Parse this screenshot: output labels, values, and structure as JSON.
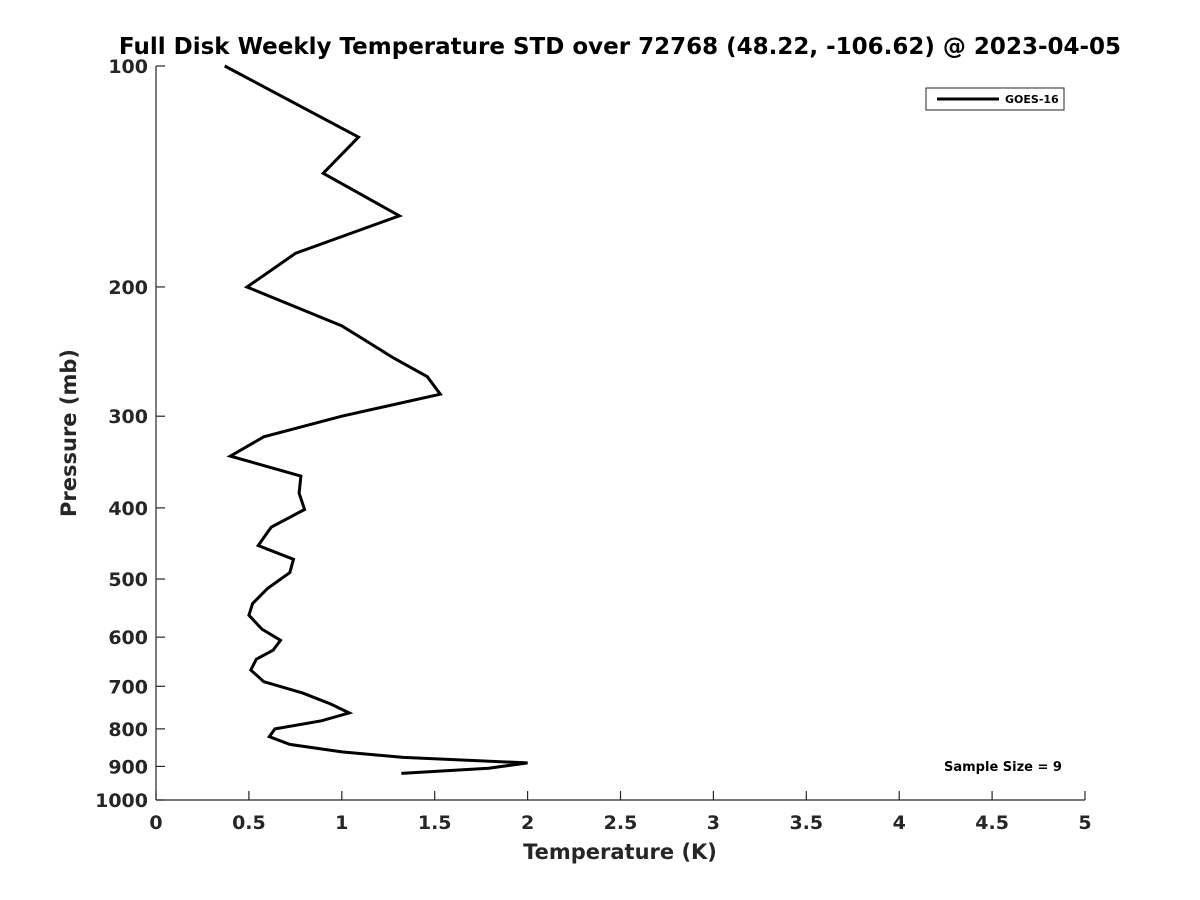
{
  "chart_data": {
    "type": "line",
    "title": "Full Disk Weekly Temperature STD over 72768 (48.22, -106.62) @ 2023-04-05",
    "xlabel": "Temperature (K)",
    "ylabel": "Pressure (mb)",
    "xlim": [
      0,
      5
    ],
    "ylim": [
      100,
      1000
    ],
    "y_scale": "log",
    "y_reversed": true,
    "x_ticks": [
      "0",
      "0.5",
      "1",
      "1.5",
      "2",
      "2.5",
      "3",
      "3.5",
      "4",
      "4.5",
      "5"
    ],
    "y_ticks": [
      "100",
      "200",
      "300",
      "400",
      "500",
      "600",
      "700",
      "800",
      "900",
      "1000"
    ],
    "grid": false,
    "legend_position": "top-right",
    "series": [
      {
        "name": "GOES-16",
        "color": "#000000",
        "points": [
          [
            0.37,
            100
          ],
          [
            1.09,
            125
          ],
          [
            0.9,
            140
          ],
          [
            1.31,
            160
          ],
          [
            0.75,
            180
          ],
          [
            0.49,
            200
          ],
          [
            1.0,
            226
          ],
          [
            1.28,
            250
          ],
          [
            1.46,
            265
          ],
          [
            1.53,
            280
          ],
          [
            1.0,
            300
          ],
          [
            0.58,
            320
          ],
          [
            0.4,
            340
          ],
          [
            0.78,
            362
          ],
          [
            0.77,
            382
          ],
          [
            0.8,
            402
          ],
          [
            0.62,
            425
          ],
          [
            0.55,
            450
          ],
          [
            0.74,
            470
          ],
          [
            0.72,
            490
          ],
          [
            0.6,
            515
          ],
          [
            0.52,
            540
          ],
          [
            0.5,
            560
          ],
          [
            0.57,
            585
          ],
          [
            0.67,
            606
          ],
          [
            0.63,
            625
          ],
          [
            0.54,
            643
          ],
          [
            0.51,
            665
          ],
          [
            0.58,
            690
          ],
          [
            0.79,
            715
          ],
          [
            0.94,
            740
          ],
          [
            1.04,
            761
          ],
          [
            0.89,
            780
          ],
          [
            0.64,
            800
          ],
          [
            0.61,
            820
          ],
          [
            0.72,
            840
          ],
          [
            1.0,
            860
          ],
          [
            1.33,
            875
          ],
          [
            2.0,
            890
          ],
          [
            1.79,
            905
          ],
          [
            1.32,
            920
          ]
        ]
      }
    ],
    "annotations": [
      "Sample Size = 9"
    ]
  }
}
